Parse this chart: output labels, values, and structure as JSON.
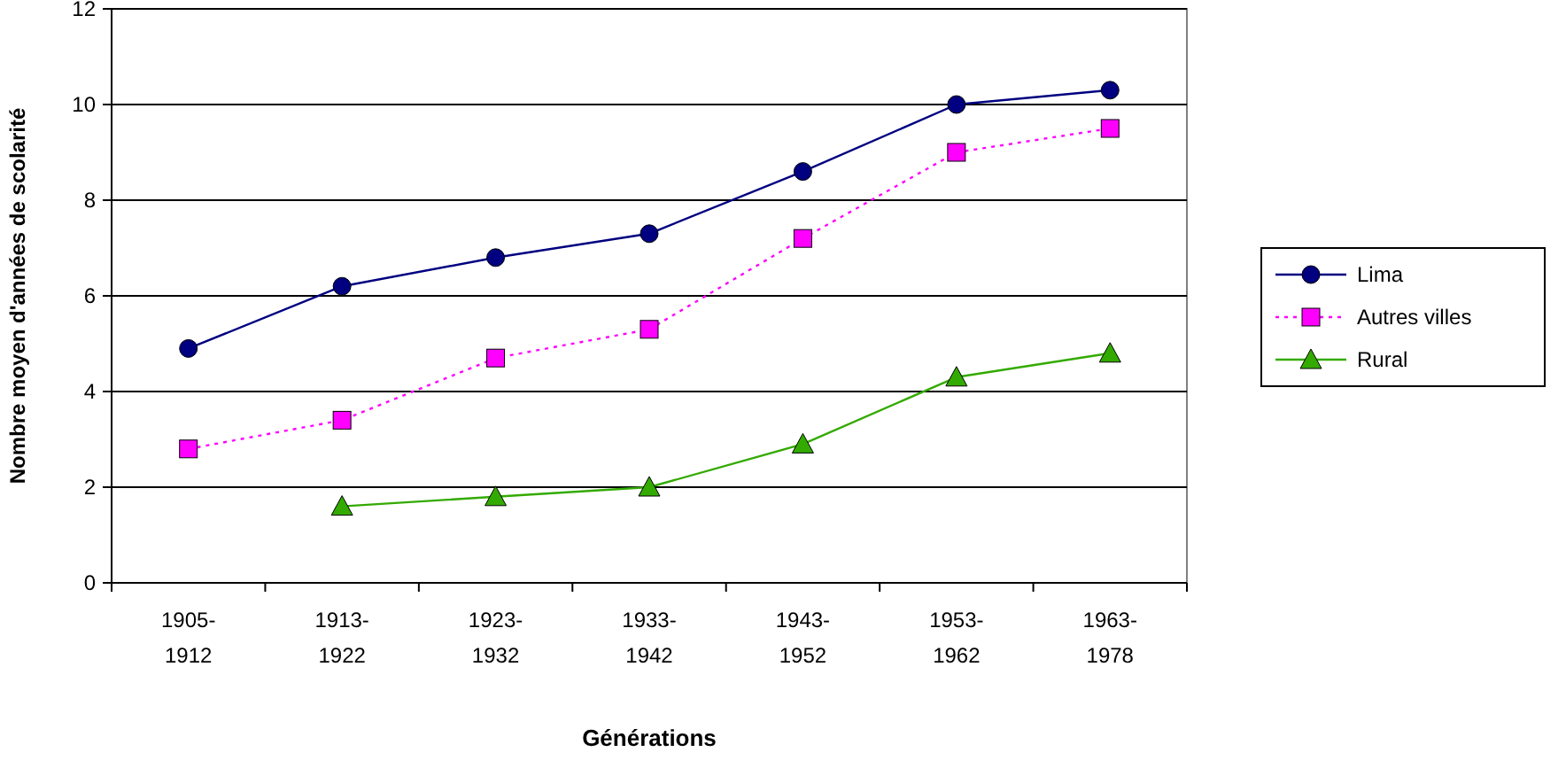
{
  "chart_data": {
    "type": "line",
    "xlabel": "Générations",
    "ylabel": "Nombre moyen d'années de scolarité",
    "categories": [
      "1905-1912",
      "1913-1922",
      "1923-1932",
      "1933-1942",
      "1943-1952",
      "1953-1962",
      "1963-1978"
    ],
    "series": [
      {
        "name": "Lima",
        "color": "#000080",
        "marker": "circle",
        "line_style": "solid",
        "values": [
          4.9,
          6.2,
          6.8,
          7.3,
          8.6,
          10.0,
          10.3
        ]
      },
      {
        "name": "Autres villes",
        "color": "#ff00ff",
        "marker": "square",
        "line_style": "dotted",
        "values": [
          2.8,
          3.4,
          4.7,
          5.3,
          7.2,
          9.0,
          9.5
        ]
      },
      {
        "name": "Rural",
        "color": "#33aa00",
        "marker": "triangle",
        "line_style": "solid",
        "values": [
          null,
          1.6,
          1.8,
          2.0,
          2.9,
          4.3,
          4.8
        ]
      }
    ],
    "ylim": [
      0,
      12
    ],
    "yticks": [
      0,
      2,
      4,
      6,
      8,
      10,
      12
    ],
    "grid": "y",
    "legend": "right"
  }
}
